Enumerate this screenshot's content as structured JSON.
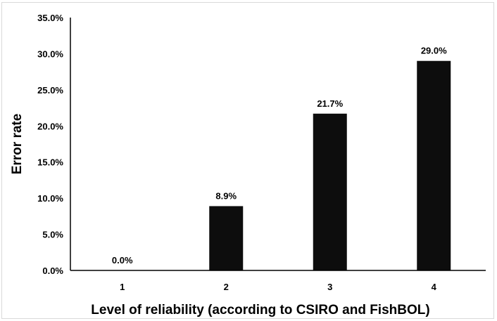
{
  "chart_data": {
    "type": "bar",
    "title": "",
    "xlabel": "Level of reliability (according to CSIRO and FishBOL)",
    "ylabel": "Error rate",
    "categories": [
      "1",
      "2",
      "3",
      "4"
    ],
    "values": [
      0.0,
      8.9,
      21.7,
      29.0
    ],
    "data_labels": [
      "0.0%",
      "8.9%",
      "21.7%",
      "29.0%"
    ],
    "ylim": [
      0,
      35
    ],
    "yticks": [
      0,
      5,
      10,
      15,
      20,
      25,
      30,
      35
    ],
    "ytick_labels": [
      "0.0%",
      "5.0%",
      "10.0%",
      "15.0%",
      "20.0%",
      "25.0%",
      "30.0%",
      "35.0%"
    ],
    "grid": false,
    "legend": "none",
    "bar_color": "#0d0d0d"
  }
}
